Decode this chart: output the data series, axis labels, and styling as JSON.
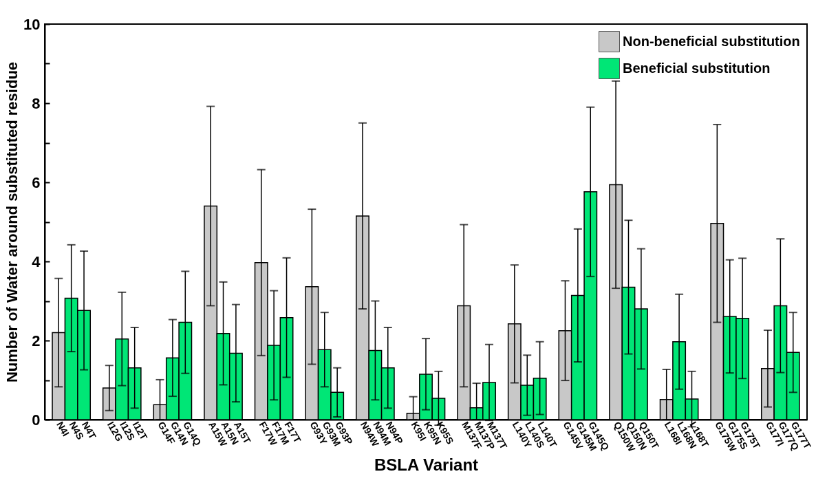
{
  "chart_data": {
    "type": "bar",
    "xlabel": "BSLA Variant",
    "ylabel": "Number of Water around substituted residue",
    "categories": [
      "N4I",
      "N4S",
      "N4T",
      "I12G",
      "I12S",
      "I12T",
      "G14F",
      "G14N",
      "G14Q",
      "A15W",
      "A15N",
      "A15T",
      "F17W",
      "F17M",
      "F17T",
      "G93Y",
      "G93M",
      "G93P",
      "N94W",
      "N94M",
      "N94P",
      "K95I",
      "K95N",
      "K95S",
      "M137F",
      "M137P",
      "M137T",
      "L140Y",
      "L140S",
      "L140T",
      "G145V",
      "G145M",
      "G145Q",
      "Q150W",
      "Q150N",
      "Q150T",
      "L168I",
      "L168N",
      "L168T",
      "G175W",
      "G175S",
      "G175T",
      "G177I",
      "G177Q",
      "G177T"
    ],
    "series": [
      {
        "name": "Non-beneficial substitution",
        "color": "#c8c8c8",
        "values": [
          2.2,
          null,
          null,
          0.8,
          null,
          null,
          0.38,
          null,
          null,
          5.4,
          null,
          null,
          3.97,
          null,
          null,
          3.36,
          null,
          null,
          5.15,
          null,
          null,
          0.16,
          null,
          null,
          2.88,
          null,
          null,
          2.42,
          null,
          null,
          2.25,
          null,
          null,
          5.94,
          null,
          null,
          0.51,
          null,
          null,
          4.96,
          null,
          null,
          1.29,
          null,
          null
        ],
        "errors": [
          1.37,
          null,
          null,
          0.57,
          null,
          null,
          [
            0,
            1.01
          ],
          null,
          null,
          2.52,
          null,
          null,
          2.35,
          null,
          null,
          1.96,
          null,
          null,
          2.35,
          null,
          null,
          [
            0,
            0.58
          ],
          null,
          null,
          2.05,
          null,
          null,
          1.49,
          null,
          null,
          1.26,
          null,
          null,
          2.62,
          null,
          null,
          [
            0,
            1.27
          ],
          null,
          null,
          2.5,
          null,
          null,
          0.97,
          null,
          null
        ]
      },
      {
        "name": "Beneficial substitution",
        "color": "#00e676",
        "values": [
          null,
          3.07,
          2.76,
          null,
          2.04,
          1.31,
          null,
          1.56,
          2.46,
          null,
          2.18,
          1.68,
          null,
          1.88,
          2.58,
          null,
          1.77,
          0.69,
          null,
          1.75,
          1.31,
          null,
          1.15,
          0.54,
          null,
          0.3,
          0.94,
          null,
          0.87,
          1.05,
          null,
          3.14,
          5.76,
          null,
          3.35,
          2.8,
          null,
          1.97,
          0.52,
          null,
          2.61,
          2.56,
          null,
          2.88,
          1.7
        ],
        "errors": [
          null,
          1.35,
          1.5,
          null,
          1.18,
          1.02,
          null,
          0.97,
          1.29,
          null,
          1.3,
          1.23,
          null,
          1.38,
          1.51,
          null,
          0.94,
          0.62,
          null,
          1.25,
          1.02,
          null,
          0.9,
          0.68,
          null,
          [
            0,
            0.92
          ],
          0.96,
          null,
          0.76,
          0.92,
          null,
          1.68,
          2.14,
          null,
          1.69,
          1.52,
          null,
          1.2,
          0.7,
          null,
          1.43,
          1.52,
          null,
          1.69,
          1.01
        ]
      }
    ],
    "ylim": [
      0,
      10
    ],
    "yticks": [
      0,
      {
        "value": 1,
        "label": null
      },
      2,
      {
        "value": 3,
        "label": null
      },
      4,
      {
        "value": 5,
        "label": null
      },
      6,
      {
        "value": 7,
        "label": null
      },
      8,
      {
        "value": 9,
        "label": null
      },
      10
    ],
    "grid": false,
    "legend": "top right"
  }
}
